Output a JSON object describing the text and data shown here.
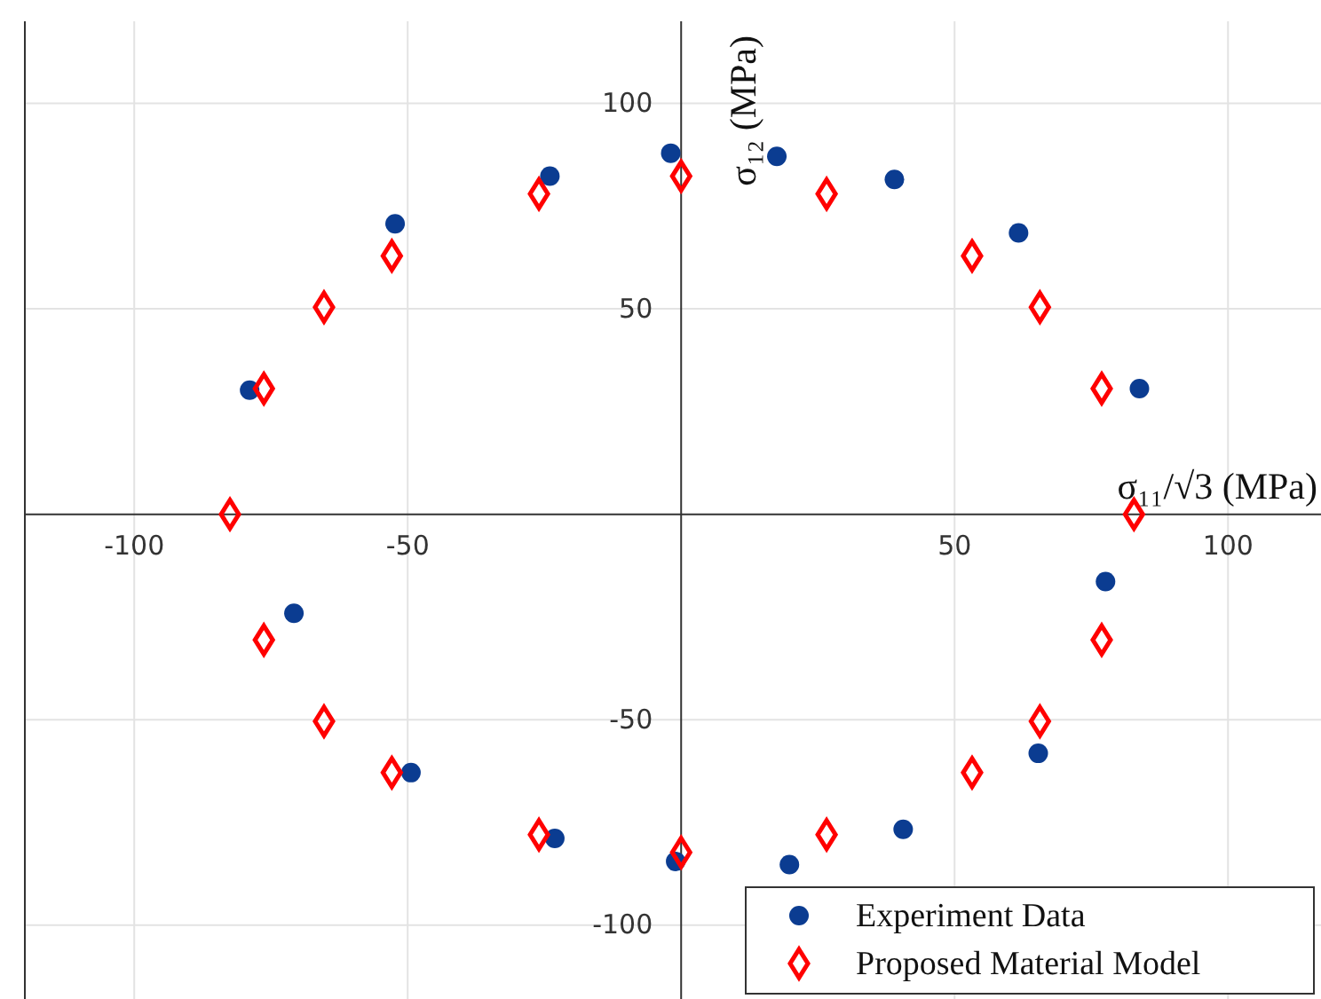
{
  "chart_data": {
    "type": "scatter",
    "xlabel": "σ₁₁/√3 (MPa)",
    "ylabel": "σ₁₂ (MPa)",
    "xlim": [
      -120,
      117
    ],
    "ylim": [
      -118,
      120
    ],
    "xticks": [
      -100,
      -50,
      50,
      100
    ],
    "yticks": [
      -100,
      -50,
      50,
      100
    ],
    "grid": true,
    "legend": "bottom right",
    "series": [
      {
        "name": "Experiment Data",
        "color": "#0b3c91",
        "marker": "circle",
        "x": [
          -78.9,
          -70.8,
          -52.3,
          -49.4,
          -24.0,
          -23.1,
          -1.9,
          -1.0,
          17.5,
          19.8,
          39.0,
          40.6,
          61.7,
          65.3,
          83.8,
          77.6
        ],
        "values": [
          30.2,
          -24.1,
          70.7,
          -62.9,
          82.3,
          -78.9,
          87.9,
          -84.5,
          87.1,
          -85.3,
          81.5,
          -76.7,
          68.5,
          -58.2,
          30.6,
          -16.4
        ]
      },
      {
        "name": "Proposed Material Model",
        "color": "#ff0000",
        "marker": "diamond",
        "x": [
          -82.5,
          -76.3,
          -76.3,
          -65.3,
          -65.3,
          -52.9,
          -52.9,
          -26.0,
          -26.0,
          0,
          0,
          26.6,
          26.6,
          53.2,
          53.2,
          65.6,
          65.6,
          76.9,
          76.9,
          82.8
        ],
        "values": [
          0,
          30.6,
          -30.6,
          50.4,
          -50.4,
          62.9,
          -62.9,
          78.0,
          -78.0,
          82.3,
          -82.3,
          78.0,
          -78.0,
          62.9,
          -62.9,
          50.4,
          -50.4,
          30.6,
          -30.6,
          0
        ]
      }
    ]
  }
}
